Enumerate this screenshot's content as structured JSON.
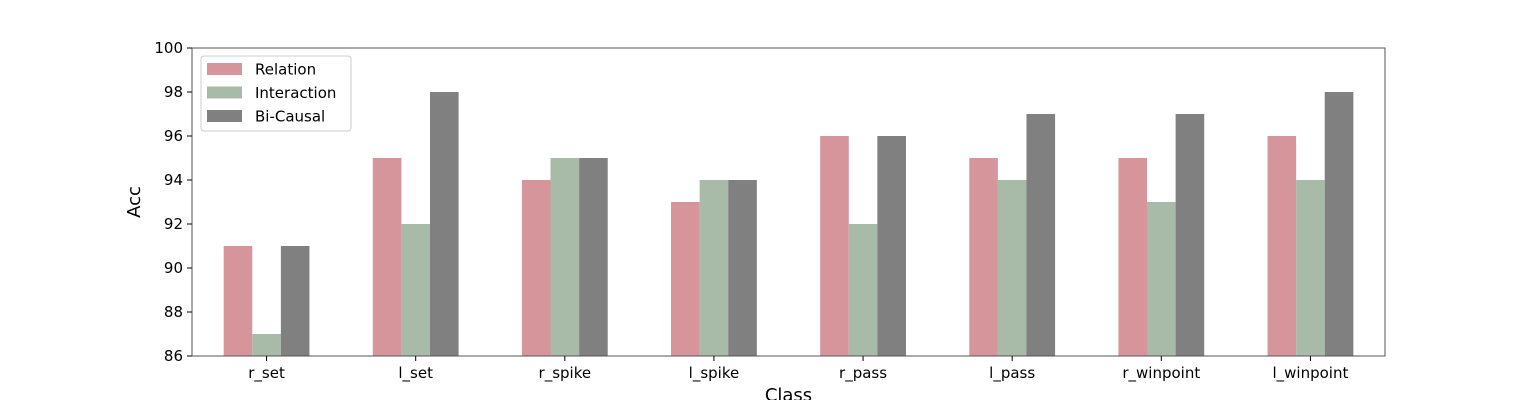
{
  "chart_data": {
    "type": "bar",
    "title": "",
    "xlabel": "Class",
    "ylabel": "Acc",
    "ylim": [
      86,
      100
    ],
    "yticks": [
      86,
      88,
      90,
      92,
      94,
      96,
      98,
      100
    ],
    "categories": [
      "r_set",
      "l_set",
      "r_spike",
      "l_spike",
      "r_pass",
      "l_pass",
      "r_winpoint",
      "l_winpoint"
    ],
    "series": [
      {
        "name": "Relation",
        "color": "#d5959b",
        "values": [
          91,
          95,
          94,
          93,
          96,
          95,
          95,
          96
        ]
      },
      {
        "name": "Interaction",
        "color": "#a8baa8",
        "values": [
          87,
          92,
          95,
          94,
          92,
          94,
          93,
          94
        ]
      },
      {
        "name": "Bi-Causal",
        "color": "#808080",
        "values": [
          91,
          98,
          95,
          94,
          96,
          97,
          97,
          98
        ]
      }
    ],
    "legend_position": "top-left",
    "grid": false
  }
}
